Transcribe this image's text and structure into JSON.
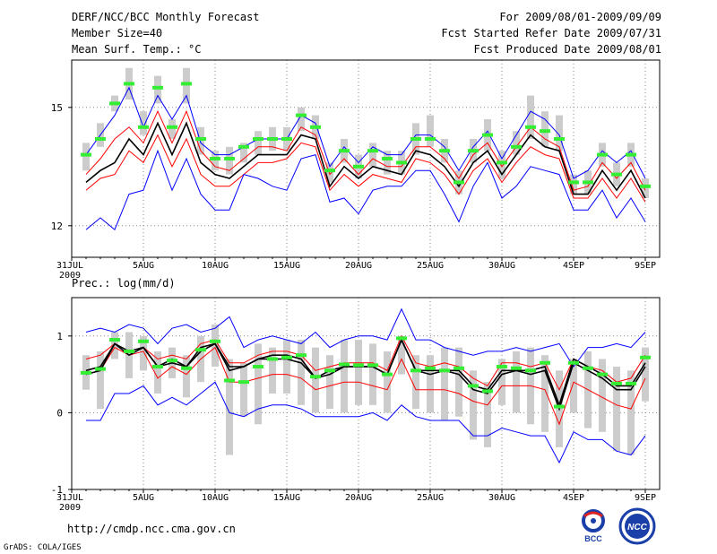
{
  "header": {
    "title": "DERF/NCC/BCC Monthly Forecast",
    "member_size": "Member Size=40",
    "variable": "Mean Surf. Temp.: °C",
    "period": "For 2009/08/01-2009/09/09",
    "started": "Fcst Started Refer Date 2009/07/31",
    "produced": "Fcst Produced Date 2009/08/01"
  },
  "footer": {
    "url": "http://cmdp.ncc.cma.gov.cn",
    "grads": "GrADS: COLA/IGES",
    "logo_bcc": "BCC",
    "logo_ncc": "NCC"
  },
  "colors": {
    "blue": "#0000ff",
    "red": "#ff0000",
    "black": "#000000",
    "green": "#33ee33",
    "gray": "#cccccc"
  },
  "chart_data": [
    {
      "type": "line",
      "title": "Mean Surf. Temp.: °C",
      "x_tick_labels": [
        "31JUL\n2009",
        "5AUG",
        "10AUG",
        "15AUG",
        "20AUG",
        "25AUG",
        "30AUG",
        "4SEP",
        "9SEP"
      ],
      "x_tick_positions": [
        0,
        5,
        10,
        15,
        20,
        25,
        30,
        35,
        40
      ],
      "xlim": [
        0,
        41
      ],
      "ylim": [
        11.2,
        16.2
      ],
      "y_ticks": [
        12,
        15
      ],
      "series": [
        {
          "name": "ensemble max",
          "color": "blue",
          "values": [
            null,
            13.8,
            14.3,
            14.8,
            15.5,
            14.5,
            15.3,
            14.7,
            15.3,
            14.1,
            13.8,
            13.8,
            14.0,
            14.2,
            14.2,
            14.2,
            14.8,
            14.6,
            13.5,
            14.0,
            13.6,
            14.0,
            13.8,
            13.8,
            14.3,
            14.3,
            14.0,
            13.4,
            14.0,
            14.4,
            13.7,
            14.3,
            14.9,
            14.7,
            14.3,
            13.2,
            13.4,
            13.9,
            13.6,
            13.9,
            13.2
          ]
        },
        {
          "name": "upper",
          "color": "red",
          "values": [
            null,
            13.3,
            13.7,
            14.2,
            14.5,
            14.1,
            14.9,
            14.1,
            14.9,
            13.9,
            13.5,
            13.4,
            13.7,
            14.0,
            14.0,
            13.9,
            14.5,
            14.3,
            13.3,
            13.7,
            13.3,
            13.7,
            13.5,
            13.5,
            14.0,
            14.0,
            13.7,
            13.2,
            13.8,
            14.1,
            13.5,
            14.0,
            14.5,
            14.2,
            14.0,
            12.9,
            13.0,
            13.6,
            13.2,
            13.6,
            12.9
          ]
        },
        {
          "name": "mean",
          "color": "black",
          "values": [
            null,
            13.1,
            13.4,
            13.6,
            14.2,
            13.8,
            14.6,
            13.8,
            14.6,
            13.6,
            13.3,
            13.2,
            13.5,
            13.8,
            13.8,
            13.8,
            14.3,
            14.2,
            13.0,
            13.5,
            13.2,
            13.5,
            13.4,
            13.3,
            13.9,
            13.8,
            13.5,
            13.0,
            13.6,
            13.9,
            13.3,
            13.8,
            14.3,
            14.0,
            13.9,
            12.8,
            12.8,
            13.4,
            12.9,
            13.4,
            12.7
          ]
        },
        {
          "name": "lower",
          "color": "red",
          "values": [
            null,
            12.9,
            13.2,
            13.3,
            13.9,
            13.6,
            14.3,
            13.5,
            14.2,
            13.3,
            13.0,
            13.0,
            13.3,
            13.6,
            13.6,
            13.7,
            14.1,
            14.0,
            12.9,
            13.3,
            13.0,
            13.3,
            13.2,
            13.1,
            13.7,
            13.6,
            13.3,
            12.8,
            13.4,
            13.7,
            13.1,
            13.6,
            14.0,
            13.8,
            13.7,
            12.7,
            12.7,
            13.2,
            12.7,
            13.2,
            12.6
          ]
        },
        {
          "name": "ensemble min",
          "color": "blue",
          "values": [
            null,
            11.9,
            12.2,
            11.9,
            12.8,
            12.9,
            13.9,
            12.9,
            13.7,
            12.8,
            12.4,
            12.4,
            13.3,
            13.2,
            13.0,
            12.9,
            13.7,
            13.8,
            12.6,
            12.7,
            12.3,
            12.9,
            13.0,
            13.0,
            13.4,
            13.4,
            12.8,
            12.1,
            13.0,
            13.6,
            12.7,
            13.0,
            13.5,
            13.4,
            13.3,
            12.4,
            12.4,
            12.9,
            12.2,
            12.7,
            12.1
          ]
        }
      ],
      "observed_markers": [
        null,
        13.8,
        14.2,
        15.1,
        15.6,
        14.5,
        15.5,
        14.5,
        15.6,
        14.2,
        13.7,
        13.7,
        14.0,
        14.2,
        14.2,
        14.2,
        14.8,
        14.5,
        13.4,
        13.9,
        13.5,
        13.9,
        13.7,
        13.6,
        14.2,
        14.2,
        13.9,
        13.1,
        13.9,
        14.3,
        13.6,
        14.0,
        14.5,
        14.4,
        14.2,
        13.1,
        13.1,
        13.8,
        13.3,
        13.8,
        13.0
      ],
      "spread_boxes": [
        null,
        [
          13.4,
          14.1
        ],
        [
          14.0,
          14.6
        ],
        [
          14.9,
          15.3
        ],
        [
          15.2,
          16.0
        ],
        [
          14.3,
          14.9
        ],
        [
          15.1,
          15.8
        ],
        [
          14.2,
          14.7
        ],
        [
          15.1,
          16.0
        ],
        [
          13.8,
          14.5
        ],
        [
          13.4,
          13.9
        ],
        [
          13.3,
          14.0
        ],
        [
          13.6,
          14.1
        ],
        [
          13.8,
          14.4
        ],
        [
          13.9,
          14.5
        ],
        [
          13.9,
          14.5
        ],
        [
          14.4,
          15.0
        ],
        [
          14.2,
          14.8
        ],
        [
          13.1,
          13.6
        ],
        [
          13.6,
          14.2
        ],
        [
          13.2,
          13.8
        ],
        [
          13.5,
          14.1
        ],
        [
          13.3,
          13.9
        ],
        [
          13.3,
          13.9
        ],
        [
          13.8,
          14.6
        ],
        [
          14.0,
          14.8
        ],
        [
          13.6,
          14.2
        ],
        [
          12.8,
          13.4
        ],
        [
          13.6,
          14.2
        ],
        [
          13.9,
          14.7
        ],
        [
          13.2,
          13.9
        ],
        [
          13.8,
          14.4
        ],
        [
          14.2,
          15.3
        ],
        [
          14.0,
          14.9
        ],
        [
          13.9,
          14.8
        ],
        [
          12.8,
          13.3
        ],
        [
          12.8,
          13.4
        ],
        [
          13.5,
          14.1
        ],
        [
          13.0,
          13.6
        ],
        [
          13.5,
          14.1
        ],
        [
          12.7,
          13.2
        ]
      ]
    },
    {
      "type": "line",
      "title": "Prec.: log(mm/d)",
      "x_tick_labels": [
        "31JUL\n2009",
        "5AUG",
        "10AUG",
        "15AUG",
        "20AUG",
        "25AUG",
        "30AUG",
        "4SEP",
        "9SEP"
      ],
      "x_tick_positions": [
        0,
        5,
        10,
        15,
        20,
        25,
        30,
        35,
        40
      ],
      "xlim": [
        0,
        41
      ],
      "ylim": [
        -1,
        1.5
      ],
      "y_ticks": [
        -1,
        0,
        1
      ],
      "series": [
        {
          "name": "ensemble max",
          "color": "blue",
          "values": [
            null,
            1.05,
            1.1,
            1.05,
            1.15,
            1.1,
            0.9,
            1.1,
            1.15,
            1.05,
            1.1,
            1.25,
            0.85,
            0.95,
            1.0,
            0.95,
            0.9,
            1.05,
            0.85,
            0.95,
            1.0,
            1.0,
            0.95,
            1.35,
            0.95,
            0.95,
            0.85,
            0.8,
            0.75,
            0.8,
            0.8,
            0.85,
            0.8,
            0.85,
            0.9,
            0.6,
            0.85,
            0.85,
            0.9,
            0.85,
            1.05
          ]
        },
        {
          "name": "upper",
          "color": "red",
          "values": [
            null,
            0.7,
            0.75,
            0.9,
            0.8,
            0.85,
            0.7,
            0.75,
            0.7,
            0.9,
            0.95,
            0.65,
            0.65,
            0.75,
            0.8,
            0.8,
            0.75,
            0.55,
            0.6,
            0.65,
            0.65,
            0.65,
            0.55,
            1.0,
            0.65,
            0.6,
            0.65,
            0.6,
            0.45,
            0.35,
            0.65,
            0.65,
            0.6,
            0.65,
            0.3,
            0.7,
            0.6,
            0.55,
            0.4,
            0.45,
            0.75
          ]
        },
        {
          "name": "mean",
          "color": "black",
          "values": [
            null,
            0.55,
            0.6,
            0.9,
            0.8,
            0.85,
            0.6,
            0.7,
            0.6,
            0.85,
            0.9,
            0.6,
            0.6,
            0.7,
            0.75,
            0.75,
            0.7,
            0.45,
            0.55,
            0.6,
            0.6,
            0.6,
            0.5,
            0.95,
            0.55,
            0.55,
            0.55,
            0.55,
            0.35,
            0.3,
            0.55,
            0.55,
            0.55,
            0.6,
            0.1,
            0.7,
            0.6,
            0.5,
            0.35,
            0.35,
            0.65
          ]
        },
        {
          "name": "lower",
          "color": "red",
          "values": [
            null,
            0.5,
            0.55,
            0.85,
            0.75,
            0.8,
            0.45,
            0.6,
            0.5,
            0.7,
            0.85,
            0.4,
            0.4,
            0.45,
            0.5,
            0.5,
            0.45,
            0.3,
            0.35,
            0.4,
            0.4,
            0.35,
            0.3,
            0.7,
            0.3,
            0.3,
            0.3,
            0.25,
            0.15,
            0.1,
            0.35,
            0.35,
            0.35,
            0.3,
            -0.15,
            0.4,
            0.3,
            0.2,
            0.1,
            0.05,
            0.45
          ]
        },
        {
          "name": "ensemble min",
          "color": "blue",
          "values": [
            null,
            -0.1,
            -0.1,
            0.25,
            0.25,
            0.35,
            0.1,
            0.2,
            0.1,
            0.25,
            0.4,
            0.0,
            -0.05,
            0.05,
            0.1,
            0.1,
            0.05,
            -0.05,
            -0.05,
            -0.05,
            -0.05,
            0.0,
            -0.1,
            0.1,
            -0.05,
            -0.1,
            -0.1,
            -0.1,
            -0.3,
            -0.3,
            -0.2,
            -0.25,
            -0.3,
            -0.3,
            -0.65,
            -0.25,
            -0.35,
            -0.35,
            -0.5,
            -0.55,
            -0.3
          ]
        },
        {
          "name": "second member",
          "color": "black",
          "values": [
            null,
            0.5,
            0.55,
            0.9,
            0.75,
            0.85,
            0.6,
            0.65,
            0.6,
            0.8,
            0.9,
            0.55,
            0.6,
            0.7,
            0.7,
            0.7,
            0.65,
            0.45,
            0.5,
            0.6,
            0.6,
            0.6,
            0.5,
            0.95,
            0.55,
            0.5,
            0.55,
            0.5,
            0.3,
            0.25,
            0.5,
            0.55,
            0.5,
            0.55,
            0.05,
            0.65,
            0.55,
            0.45,
            0.3,
            0.3,
            0.6
          ]
        }
      ],
      "observed_markers": [
        null,
        0.52,
        0.57,
        0.95,
        0.8,
        0.93,
        0.6,
        0.68,
        0.58,
        0.82,
        0.93,
        0.42,
        0.4,
        0.6,
        0.7,
        0.72,
        0.75,
        0.47,
        0.55,
        0.63,
        0.62,
        0.62,
        0.5,
        0.97,
        0.55,
        0.58,
        0.55,
        0.58,
        0.35,
        0.28,
        0.6,
        0.58,
        0.55,
        0.65,
        0.08,
        0.65,
        0.58,
        0.5,
        0.38,
        0.38,
        0.72
      ],
      "spread_boxes": [
        null,
        [
          0.3,
          0.75
        ],
        [
          0.05,
          0.8
        ],
        [
          0.7,
          1.05
        ],
        [
          0.45,
          1.05
        ],
        [
          0.55,
          1.0
        ],
        [
          0.25,
          0.8
        ],
        [
          0.45,
          0.85
        ],
        [
          0.2,
          0.75
        ],
        [
          0.4,
          1.0
        ],
        [
          0.6,
          1.15
        ],
        [
          -0.55,
          0.7
        ],
        [
          -0.05,
          0.65
        ],
        [
          -0.15,
          0.9
        ],
        [
          0.25,
          0.85
        ],
        [
          0.25,
          0.95
        ],
        [
          0.1,
          0.95
        ],
        [
          0.0,
          0.85
        ],
        [
          0.05,
          0.75
        ],
        [
          0.0,
          0.95
        ],
        [
          0.1,
          0.95
        ],
        [
          0.1,
          0.9
        ],
        [
          0.0,
          0.8
        ],
        [
          0.5,
          1.0
        ],
        [
          0.05,
          0.75
        ],
        [
          0.0,
          0.75
        ],
        [
          -0.1,
          0.85
        ],
        [
          -0.05,
          0.85
        ],
        [
          -0.35,
          0.55
        ],
        [
          -0.45,
          0.4
        ],
        [
          0.1,
          0.7
        ],
        [
          0.0,
          0.8
        ],
        [
          -0.15,
          0.85
        ],
        [
          -0.25,
          0.75
        ],
        [
          -0.45,
          0.55
        ],
        [
          0.0,
          0.7
        ],
        [
          -0.2,
          0.8
        ],
        [
          -0.25,
          0.7
        ],
        [
          -0.5,
          0.6
        ],
        [
          -0.55,
          0.55
        ],
        [
          0.15,
          0.85
        ]
      ]
    }
  ]
}
